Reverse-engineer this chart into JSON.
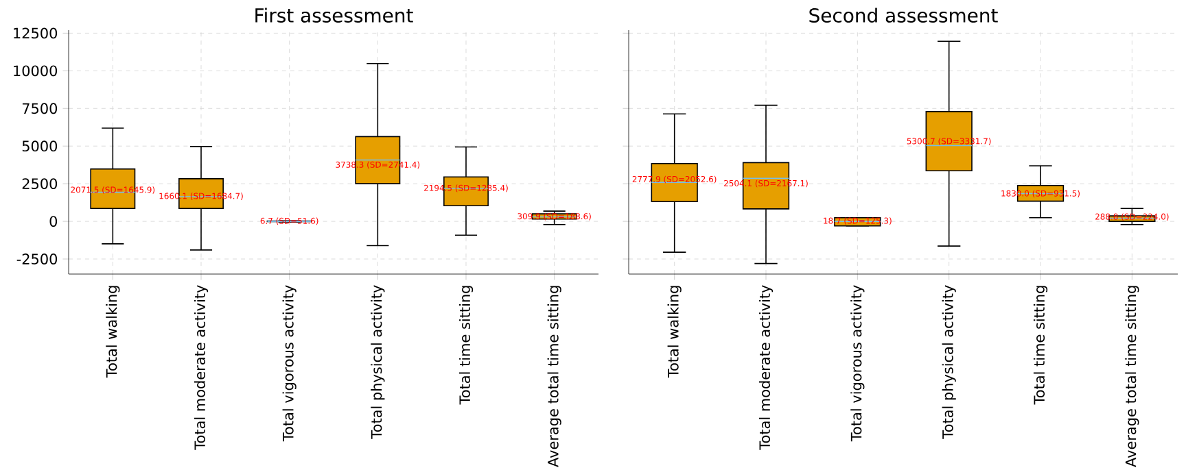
{
  "chart_data": [
    {
      "type": "box",
      "title": "First assessment",
      "color": "#e69f00",
      "categories": [
        "Total walking",
        "Total moderate activity",
        "Total vigorous activity",
        "Total physical activity",
        "Total time sitting",
        "Average total time sitting"
      ],
      "boxes": [
        {
          "low": -1490,
          "q1": 860,
          "median": 1930,
          "q3": 3480,
          "high": 6190
        },
        {
          "low": -1900,
          "q1": 860,
          "median": 1640,
          "q3": 2830,
          "high": 4970
        },
        {
          "low": -40,
          "q1": -20,
          "median": 0,
          "q3": 20,
          "high": 40
        },
        {
          "low": -1610,
          "q1": 2500,
          "median": 4080,
          "q3": 5630,
          "high": 10480
        },
        {
          "low": -920,
          "q1": 1040,
          "median": 2200,
          "q3": 2950,
          "high": 4940
        },
        {
          "low": -210,
          "q1": 150,
          "median": 300,
          "q3": 500,
          "high": 680
        }
      ],
      "annotations": [
        {
          "text": "2071.5 (SD=1645.9)",
          "x": "Total walking",
          "y": 2071.5
        },
        {
          "text": "1660.1 (SD=1684.7)",
          "x": "Total moderate activity",
          "y": 1660.1
        },
        {
          "text": "6.7 (SD=51.6)",
          "x": "Total vigorous activity",
          "y": 6.7
        },
        {
          "text": "3738.3 (SD=2741.4)",
          "x": "Total physical activity",
          "y": 3738.3
        },
        {
          "text": "2194.5 (SD=1285.4)",
          "x": "Total time sitting",
          "y": 2194.5
        },
        {
          "text": "309.9 (SD=188.6)",
          "x": "Average total time sitting",
          "y": 309.9
        }
      ],
      "ylim": [
        -3500,
        12700
      ],
      "yticks": [
        -2500,
        0,
        2500,
        5000,
        7500,
        10000,
        12500
      ],
      "grid": true
    },
    {
      "type": "box",
      "title": "Second assessment",
      "color": "#e69f00",
      "categories": [
        "Total walking",
        "Total moderate activity",
        "Total vigorous activity",
        "Total physical activity",
        "Total time sitting",
        "Average total time sitting"
      ],
      "boxes": [
        {
          "low": -2050,
          "q1": 1310,
          "median": 2590,
          "q3": 3840,
          "high": 7140
        },
        {
          "low": -2800,
          "q1": 830,
          "median": 2860,
          "q3": 3900,
          "high": 7710
        },
        {
          "low": -300,
          "q1": -300,
          "median": 0,
          "q3": 240,
          "high": 240
        },
        {
          "low": -1640,
          "q1": 3360,
          "median": 5030,
          "q3": 7290,
          "high": 11960
        },
        {
          "low": 240,
          "q1": 1340,
          "median": 1850,
          "q3": 2380,
          "high": 3690
        },
        {
          "low": -210,
          "q1": 0,
          "median": 210,
          "q3": 360,
          "high": 860
        }
      ],
      "annotations": [
        {
          "text": "2777.9 (SD=2052.6)",
          "x": "Total walking",
          "y": 2777.9
        },
        {
          "text": "2504.1 (SD=2167.1)",
          "x": "Total moderate activity",
          "y": 2504.1
        },
        {
          "text": "18.7 (SD=125.3)",
          "x": "Total vigorous activity",
          "y": 18.7
        },
        {
          "text": "5300.7 (SD=3331.7)",
          "x": "Total physical activity",
          "y": 5300.7
        },
        {
          "text": "1830.0 (SD=931.5)",
          "x": "Total time sitting",
          "y": 1830.0
        },
        {
          "text": "288.8 (SD=224.0)",
          "x": "Average total time sitting",
          "y": 288.8
        }
      ],
      "ylim": [
        -3500,
        12700
      ],
      "yticks": [
        -2500,
        0,
        2500,
        5000,
        7500,
        10000,
        12500
      ],
      "grid": true,
      "tick_labels": "x"
    }
  ]
}
